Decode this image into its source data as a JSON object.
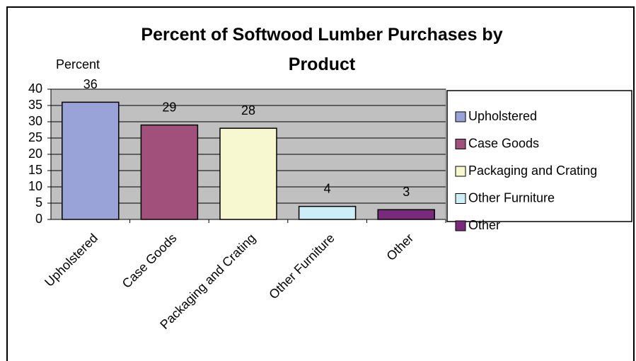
{
  "chart_data": {
    "type": "bar",
    "title": "Percent of Softwood Lumber Purchases by Product",
    "y_label": "Percent",
    "categories": [
      "Upholstered",
      "Case Goods",
      "Packaging and Crating",
      "Other Furniture",
      "Other"
    ],
    "values": [
      36,
      29,
      28,
      4,
      3
    ],
    "colors": [
      "#9aa3d8",
      "#a0507a",
      "#f8f8d0",
      "#cdeef6",
      "#7a2a7a"
    ],
    "ylim": [
      0,
      40
    ],
    "yticks": [
      0,
      5,
      10,
      15,
      20,
      25,
      30,
      35,
      40
    ],
    "grid": true,
    "legend": "right"
  }
}
